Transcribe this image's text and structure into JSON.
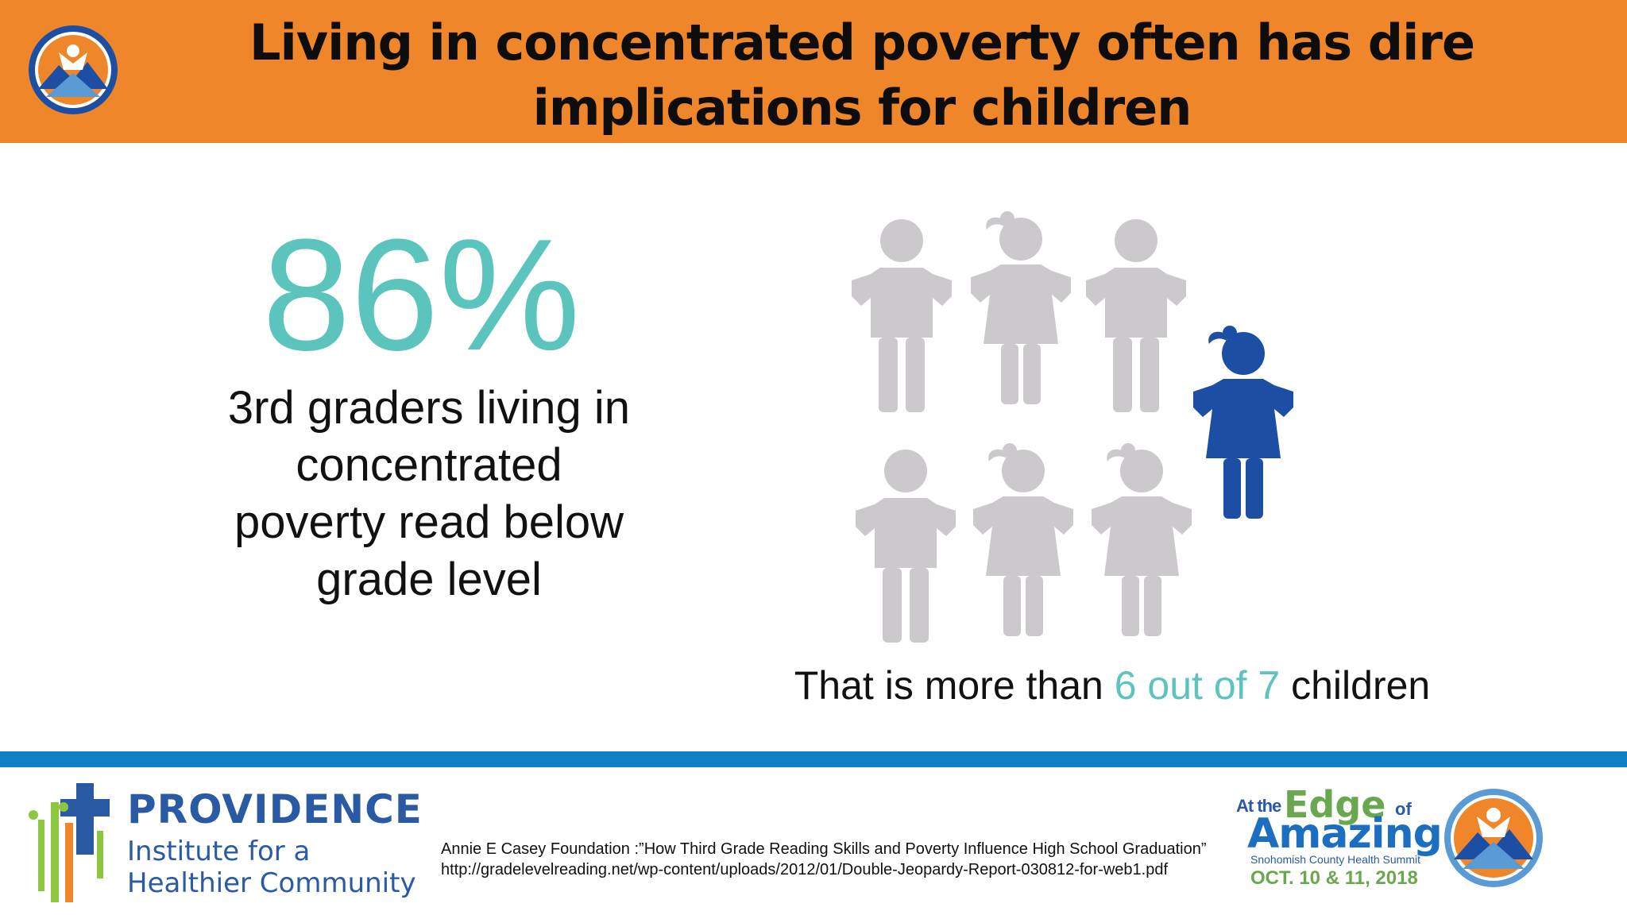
{
  "header": {
    "title": "Living in concentrated poverty often has dire implications for children",
    "logo_icon": "summit-badge-icon"
  },
  "stat": {
    "value": "86%",
    "description": "3rd graders living in concentrated poverty read below grade level",
    "fraction_highlighted": 0.857
  },
  "figures": {
    "total": 7,
    "gray_icon": "child-silhouette-icon",
    "highlight_icon": "girl-silhouette-icon"
  },
  "caption": {
    "before": "That is more than ",
    "highlight": "6 out of 7",
    "after": " children"
  },
  "footer": {
    "providence_name": "PROVIDENCE",
    "providence_sub": "Institute for a Healthier Community",
    "citation": "Annie E Casey Foundation :”How Third Grade Reading Skills and Poverty Influence High School Graduation” http://gradelevelreading.net/wp-content/uploads/2012/01/Double-Jeopardy-Report-030812-for-web1.pdf",
    "event_at_the": "At the",
    "event_edge": "Edge",
    "event_of": "of",
    "event_amazing": "Amazing",
    "event_summit": "Snohomish County Health Summit",
    "event_date": "OCT. 10 & 11, 2018"
  },
  "colors": {
    "header_orange": "#f0862a",
    "accent_teal": "#5bc4bd",
    "figure_gray": "#cbc9cc",
    "figure_blue": "#1c4fa3",
    "bar_blue": "#1181c5",
    "providence_blue": "#2a5aa3"
  }
}
